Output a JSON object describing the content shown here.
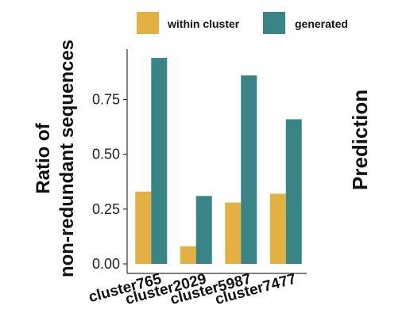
{
  "chart_data": {
    "type": "bar",
    "categories": [
      "cluster765",
      "cluster2029",
      "cluster5987",
      "cluster7477"
    ],
    "series": [
      {
        "name": "within cluster",
        "color": "#E2B142",
        "values": [
          0.33,
          0.08,
          0.28,
          0.32
        ]
      },
      {
        "name": "generated",
        "color": "#398487",
        "values": [
          0.94,
          0.31,
          0.86,
          0.66
        ]
      }
    ],
    "ylabel_line1": "Ratio of",
    "ylabel_line2": "non-redundant sequences",
    "yticks": [
      "0.00",
      "0.25",
      "0.50",
      "0.75"
    ],
    "ytick_values": [
      0,
      0.25,
      0.5,
      0.75
    ],
    "ylim": [
      0,
      0.98
    ],
    "grid": false,
    "legend_position": "top"
  },
  "adjacent_panel": {
    "partial_text": "Prediction"
  }
}
